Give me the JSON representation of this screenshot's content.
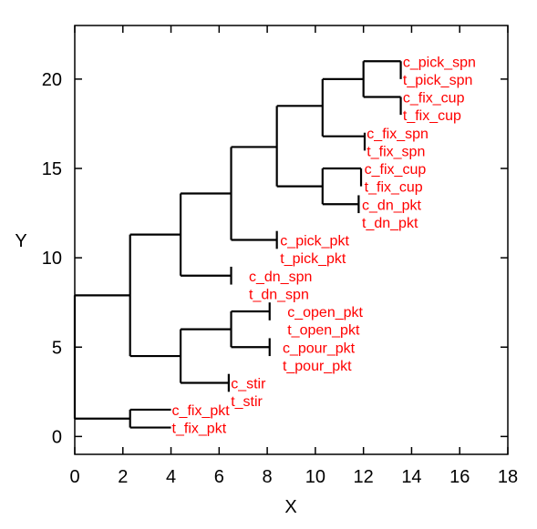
{
  "chart_data": {
    "type": "dendrogram",
    "title": "",
    "xlabel": "X",
    "ylabel": "Y",
    "xlim": [
      0,
      18
    ],
    "ylim": [
      -1,
      23
    ],
    "x_ticks": [
      0,
      2,
      4,
      6,
      8,
      10,
      12,
      14,
      16,
      18
    ],
    "y_ticks": [
      0,
      5,
      10,
      15,
      20
    ],
    "grid": false,
    "line_color": "#000000",
    "label_color": "#ff0000",
    "leaves": [
      {
        "label": "c_pick_spn",
        "y": 21,
        "x": 13.6
      },
      {
        "label": "t_pick_spn",
        "y": 20,
        "x": 13.6
      },
      {
        "label": "c_fix_cup",
        "y": 19,
        "x": 13.6
      },
      {
        "label": "t_fix_cup",
        "y": 18,
        "x": 13.6
      },
      {
        "label": "c_fix_spn",
        "y": 17,
        "x": 12.1
      },
      {
        "label": "t_fix_spn",
        "y": 16,
        "x": 12.1
      },
      {
        "label": "c_fix_cup",
        "y": 15,
        "x": 12.0
      },
      {
        "label": "t_fix_cup",
        "y": 14,
        "x": 12.0
      },
      {
        "label": "c_dn_pkt",
        "y": 13,
        "x": 11.9
      },
      {
        "label": "t_dn_pkt",
        "y": 12,
        "x": 11.9
      },
      {
        "label": "c_pick_pkt",
        "y": 11,
        "x": 8.5
      },
      {
        "label": "t_pick_pkt",
        "y": 10,
        "x": 8.5
      },
      {
        "label": "c_dn_spn",
        "y": 9,
        "x": 7.2
      },
      {
        "label": "t_dn_spn",
        "y": 8,
        "x": 7.2
      },
      {
        "label": "c_open_pkt",
        "y": 7,
        "x": 8.8
      },
      {
        "label": "t_open_pkt",
        "y": 6,
        "x": 8.8
      },
      {
        "label": "c_pour_pkt",
        "y": 5,
        "x": 8.6
      },
      {
        "label": "t_pour_pkt",
        "y": 4,
        "x": 8.6
      },
      {
        "label": "c_stir",
        "y": 3,
        "x": 6.45
      },
      {
        "label": "t_stir",
        "y": 2,
        "x": 6.45
      },
      {
        "label": "c_fix_pkt",
        "y": 1.5,
        "x": 4.0
      },
      {
        "label": "t_fix_pkt",
        "y": 0.5,
        "x": 4.0
      }
    ],
    "merges": [
      {
        "x": 13.55,
        "y1": 20,
        "y2": 21
      },
      {
        "x": 13.55,
        "y1": 18,
        "y2": 19
      },
      {
        "x": 12.0,
        "y1": 19.0,
        "y2": 21.0
      },
      {
        "x": 12.05,
        "y1": 16,
        "y2": 17
      },
      {
        "x": 10.3,
        "y1": 16.8,
        "y2": 20.0
      },
      {
        "x": 11.9,
        "y1": 14,
        "y2": 15
      },
      {
        "x": 11.8,
        "y1": 12.5,
        "y2": 13.5
      },
      {
        "x": 10.3,
        "y1": 13.0,
        "y2": 15.0
      },
      {
        "x": 8.4,
        "y1": 14.0,
        "y2": 18.5
      },
      {
        "x": 8.4,
        "y1": 10.5,
        "y2": 11.5
      },
      {
        "x": 6.5,
        "y1": 11.0,
        "y2": 16.2
      },
      {
        "x": 6.5,
        "y1": 8.5,
        "y2": 9.5
      },
      {
        "x": 4.4,
        "y1": 9.0,
        "y2": 13.6
      },
      {
        "x": 8.1,
        "y1": 6.5,
        "y2": 7.5
      },
      {
        "x": 8.1,
        "y1": 4.5,
        "y2": 5.5
      },
      {
        "x": 6.5,
        "y1": 5.0,
        "y2": 7.0
      },
      {
        "x": 6.4,
        "y1": 2.5,
        "y2": 3.5
      },
      {
        "x": 4.4,
        "y1": 3.0,
        "y2": 6.0
      },
      {
        "x": 2.3,
        "y1": 4.5,
        "y2": 11.3
      },
      {
        "x": 2.3,
        "y1": 0.5,
        "y2": 1.5
      },
      {
        "x": 0.0,
        "y1": 1.0,
        "y2": 7.9
      }
    ],
    "links": [
      {
        "x1": 12.0,
        "x2": 13.55,
        "y": 21.0
      },
      {
        "x1": 12.0,
        "x2": 13.55,
        "y": 19.0
      },
      {
        "x1": 10.3,
        "x2": 12.0,
        "y": 20.0
      },
      {
        "x1": 10.3,
        "x2": 12.05,
        "y": 16.8
      },
      {
        "x1": 8.4,
        "x2": 10.3,
        "y": 18.5
      },
      {
        "x1": 10.3,
        "x2": 11.9,
        "y": 15.0
      },
      {
        "x1": 10.3,
        "x2": 11.8,
        "y": 13.0
      },
      {
        "x1": 8.4,
        "x2": 10.3,
        "y": 14.0
      },
      {
        "x1": 6.5,
        "x2": 8.4,
        "y": 16.2
      },
      {
        "x1": 6.5,
        "x2": 8.4,
        "y": 11.0
      },
      {
        "x1": 4.4,
        "x2": 6.5,
        "y": 13.6
      },
      {
        "x1": 4.4,
        "x2": 6.5,
        "y": 9.0
      },
      {
        "x1": 2.3,
        "x2": 4.4,
        "y": 11.3
      },
      {
        "x1": 6.5,
        "x2": 8.1,
        "y": 7.0
      },
      {
        "x1": 6.5,
        "x2": 8.1,
        "y": 5.0
      },
      {
        "x1": 4.4,
        "x2": 6.5,
        "y": 6.0
      },
      {
        "x1": 4.4,
        "x2": 6.4,
        "y": 3.0
      },
      {
        "x1": 2.3,
        "x2": 4.4,
        "y": 4.5
      },
      {
        "x1": 0.0,
        "x2": 2.3,
        "y": 7.9
      },
      {
        "x1": 0.0,
        "x2": 2.3,
        "y": 1.0
      },
      {
        "x1": 2.3,
        "x2": 4.0,
        "y": 1.5
      },
      {
        "x1": 2.3,
        "x2": 4.0,
        "y": 0.5
      }
    ]
  }
}
